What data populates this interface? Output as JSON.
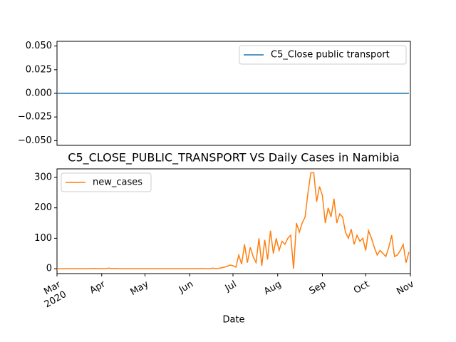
{
  "chart_data": [
    {
      "type": "line",
      "x": [
        0,
        2,
        4,
        6,
        8,
        10,
        12,
        14,
        16,
        18,
        20,
        22,
        24,
        26,
        28,
        30,
        32,
        34,
        36,
        38,
        40,
        42,
        44,
        46,
        48,
        50,
        52,
        54,
        56,
        58,
        60,
        62,
        64,
        66,
        68,
        70,
        72,
        74,
        76,
        78,
        80,
        82,
        84,
        86,
        88,
        90,
        92,
        94,
        96,
        98,
        100,
        102,
        104,
        106,
        108,
        110,
        112,
        114,
        116,
        118,
        120,
        122,
        124,
        126,
        128,
        130,
        132,
        134,
        136,
        138,
        140,
        142,
        144,
        146,
        148,
        150,
        152,
        154,
        156,
        158,
        160,
        162,
        164,
        166,
        168,
        170,
        172,
        174,
        176,
        178,
        180,
        182,
        184,
        186,
        188,
        190,
        192,
        194,
        196,
        198,
        200,
        202,
        204,
        206,
        208,
        210,
        212,
        214,
        216,
        218,
        220,
        222,
        224,
        226,
        228,
        230,
        232,
        234,
        236,
        238,
        240,
        242,
        244
      ],
      "xlim": [
        0,
        245
      ],
      "series": [
        {
          "name": "C5_Close public transport",
          "color": "#1f77b4",
          "values": [
            0,
            0,
            0,
            0,
            0,
            0,
            0,
            0,
            0,
            0,
            0,
            0,
            0,
            0,
            0,
            0,
            0,
            0,
            0,
            0,
            0,
            0,
            0,
            0,
            0,
            0,
            0,
            0,
            0,
            0,
            0,
            0,
            0,
            0,
            0,
            0,
            0,
            0,
            0,
            0,
            0,
            0,
            0,
            0,
            0,
            0,
            0,
            0,
            0,
            0,
            0,
            0,
            0,
            0,
            0,
            0,
            0,
            0,
            0,
            0,
            0,
            0,
            0,
            0,
            0,
            0,
            0,
            0,
            0,
            0,
            0,
            0,
            0,
            0,
            0,
            0,
            0,
            0,
            0,
            0,
            0,
            0,
            0,
            0,
            0,
            0,
            0,
            0,
            0,
            0,
            0,
            0,
            0,
            0,
            0,
            0,
            0,
            0,
            0,
            0,
            0,
            0,
            0,
            0,
            0,
            0,
            0,
            0,
            0,
            0,
            0,
            0,
            0,
            0,
            0,
            0,
            0,
            0,
            0,
            0,
            0,
            0,
            0
          ]
        }
      ],
      "ylim": [
        -0.055,
        0.055
      ],
      "yticks": [
        {
          "value": -0.05,
          "label": "−0.050"
        },
        {
          "value": -0.025,
          "label": "−0.025"
        },
        {
          "value": 0,
          "label": "0.000"
        },
        {
          "value": 0.025,
          "label": "0.025"
        },
        {
          "value": 0.05,
          "label": "0.050"
        }
      ],
      "legend": "upper right"
    },
    {
      "type": "line",
      "title": "C5_CLOSE_PUBLIC_TRANSPORT VS Daily Cases in Namibia",
      "xlabel": "Date",
      "x": [
        0,
        2,
        4,
        6,
        8,
        10,
        12,
        14,
        16,
        18,
        20,
        22,
        24,
        26,
        28,
        30,
        32,
        34,
        36,
        38,
        40,
        42,
        44,
        46,
        48,
        50,
        52,
        54,
        56,
        58,
        60,
        62,
        64,
        66,
        68,
        70,
        72,
        74,
        76,
        78,
        80,
        82,
        84,
        86,
        88,
        90,
        92,
        94,
        96,
        98,
        100,
        102,
        104,
        106,
        108,
        110,
        112,
        114,
        116,
        118,
        120,
        122,
        124,
        126,
        128,
        130,
        132,
        134,
        136,
        138,
        140,
        142,
        144,
        146,
        148,
        150,
        152,
        154,
        156,
        158,
        160,
        162,
        164,
        166,
        168,
        170,
        172,
        174,
        176,
        178,
        180,
        182,
        184,
        186,
        188,
        190,
        192,
        194,
        196,
        198,
        200,
        202,
        204,
        206,
        208,
        210,
        212,
        214,
        216,
        218,
        220,
        222,
        224,
        226,
        228,
        230,
        232,
        234,
        236,
        238,
        240,
        242,
        244
      ],
      "xlim": [
        0,
        245
      ],
      "xticks": [
        {
          "value": 0,
          "label": "Mar\n2020"
        },
        {
          "value": 31,
          "label": "Apr"
        },
        {
          "value": 61,
          "label": "May"
        },
        {
          "value": 92,
          "label": "Jun"
        },
        {
          "value": 122,
          "label": "Jul"
        },
        {
          "value": 153,
          "label": "Aug"
        },
        {
          "value": 184,
          "label": "Sep"
        },
        {
          "value": 214,
          "label": "Oct"
        },
        {
          "value": 245,
          "label": "Nov"
        }
      ],
      "series": [
        {
          "name": "new_cases",
          "color": "#ff7f0e",
          "values": [
            0,
            0,
            0,
            0,
            0,
            0,
            0,
            0,
            0,
            0,
            0,
            0,
            0,
            1,
            0,
            0,
            0,
            0,
            2,
            0,
            1,
            0,
            0,
            0,
            0,
            0,
            0,
            0,
            0,
            0,
            0,
            0,
            0,
            0,
            0,
            0,
            0,
            0,
            0,
            0,
            0,
            0,
            0,
            0,
            0,
            0,
            0,
            0,
            0,
            0,
            1,
            0,
            0,
            0,
            2,
            0,
            1,
            3,
            5,
            8,
            12,
            10,
            5,
            45,
            15,
            80,
            20,
            70,
            40,
            20,
            100,
            10,
            95,
            30,
            125,
            50,
            100,
            60,
            90,
            80,
            100,
            110,
            0,
            150,
            120,
            150,
            170,
            250,
            315,
            315,
            220,
            270,
            240,
            150,
            200,
            170,
            230,
            150,
            180,
            170,
            120,
            100,
            130,
            80,
            110,
            90,
            100,
            60,
            125,
            100,
            70,
            45,
            60,
            50,
            40,
            70,
            110,
            40,
            45,
            60,
            80,
            20,
            55
          ]
        }
      ],
      "ylim": [
        -16,
        328
      ],
      "yticks": [
        0,
        100,
        200,
        300
      ],
      "legend": "upper left"
    }
  ]
}
